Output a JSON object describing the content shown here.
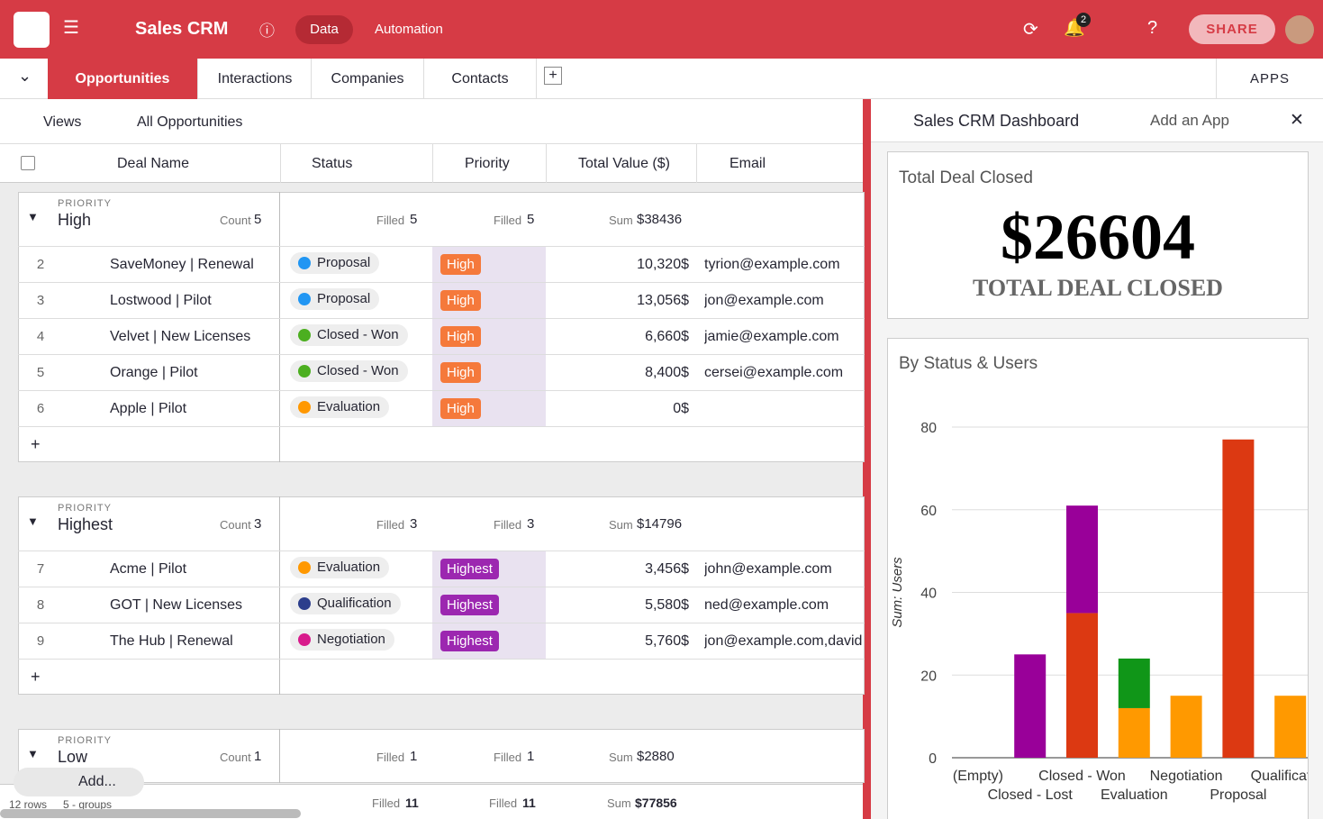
{
  "topbar": {
    "app_name": "Sales CRM",
    "tabs": [
      "Data",
      "Automation"
    ],
    "notifications": "2",
    "share": "SHARE"
  },
  "table_tabs": [
    "Opportunities",
    "Interactions",
    "Companies",
    "Contacts"
  ],
  "apps": "APPS",
  "toolbar": {
    "views": "Views",
    "view_name": "All Opportunities"
  },
  "columns": [
    "Deal Name",
    "Status",
    "Priority",
    "Total Value ($)",
    "Email"
  ],
  "summary_labels": {
    "group": "PRIORITY",
    "count": "Count",
    "filled": "Filled",
    "sum": "Sum"
  },
  "groups": [
    {
      "name": "High",
      "count": 5,
      "status_filled": 5,
      "priority_filled": 5,
      "sum": "$38436",
      "rows": [
        {
          "id": 2,
          "deal": "SaveMoney | Renewal",
          "status": "Proposal",
          "status_color": "#2196f3",
          "priority": "High",
          "priority_color": "#f5793b",
          "value": "10,320$",
          "email": "tyrion@example.com"
        },
        {
          "id": 3,
          "deal": "Lostwood | Pilot",
          "status": "Proposal",
          "status_color": "#2196f3",
          "priority": "High",
          "priority_color": "#f5793b",
          "value": "13,056$",
          "email": "jon@example.com"
        },
        {
          "id": 4,
          "deal": "Velvet | New Licenses",
          "status": "Closed - Won",
          "status_color": "#4caf20",
          "priority": "High",
          "priority_color": "#f5793b",
          "value": "6,660$",
          "email": "jamie@example.com"
        },
        {
          "id": 5,
          "deal": "Orange | Pilot",
          "status": "Closed - Won",
          "status_color": "#4caf20",
          "priority": "High",
          "priority_color": "#f5793b",
          "value": "8,400$",
          "email": "cersei@example.com"
        },
        {
          "id": 6,
          "deal": "Apple | Pilot",
          "status": "Evaluation",
          "status_color": "#ff9800",
          "priority": "High",
          "priority_color": "#f5793b",
          "value": "0$"
        }
      ]
    },
    {
      "name": "Highest",
      "count": 3,
      "status_filled": 3,
      "priority_filled": 3,
      "sum": "$14796",
      "rows": [
        {
          "id": 7,
          "deal": "Acme | Pilot",
          "status": "Evaluation",
          "status_color": "#ff9800",
          "priority": "Highest",
          "priority_color": "#9c27b0",
          "value": "3,456$",
          "email": "john@example.com"
        },
        {
          "id": 8,
          "deal": "GOT | New Licenses",
          "status": "Qualification",
          "status_color": "#2c3e8c",
          "priority": "Highest",
          "priority_color": "#9c27b0",
          "value": "5,580$",
          "email": "ned@example.com"
        },
        {
          "id": 9,
          "deal": "The Hub | Renewal",
          "status": "Negotiation",
          "status_color": "#d81b8c",
          "priority": "Highest",
          "priority_color": "#9c27b0",
          "value": "5,760$",
          "email": "jon@example.com,david"
        }
      ]
    },
    {
      "name": "Low",
      "count": 1,
      "status_filled": 1,
      "priority_filled": 1,
      "sum": "$2880",
      "rows": []
    }
  ],
  "add_button": "Add...",
  "footer": {
    "rows": "12 rows",
    "groups": "5 - groups",
    "status_filled": 11,
    "priority_filled": 11,
    "sum": "$77856"
  },
  "dashboard": {
    "title": "Sales CRM Dashboard",
    "add_app": "Add an App",
    "widget": {
      "title": "Total Deal Closed",
      "value": "$26604",
      "label": "TOTAL DEAL CLOSED"
    },
    "chart_title": "By Status & Users",
    "chart_data": {
      "type": "bar",
      "stacked": true,
      "y_label": "Sum: Users",
      "categories": [
        "(Empty)",
        "Closed - Lost",
        "Closed - Won",
        "Evaluation",
        "Negotiation",
        "Proposal",
        "Qualification"
      ],
      "series": [
        {
          "color": "#dc3912",
          "values": [
            0,
            0,
            35,
            0,
            0,
            77,
            0
          ]
        },
        {
          "color": "#ff9900",
          "values": [
            0,
            0,
            0,
            12,
            15,
            0,
            15
          ]
        },
        {
          "color": "#109618",
          "values": [
            0,
            0,
            0,
            12,
            0,
            0,
            0
          ]
        },
        {
          "color": "#990099",
          "values": [
            0,
            25,
            26,
            0,
            0,
            0,
            0
          ]
        }
      ],
      "ylim": [
        0,
        80
      ],
      "yticks": [
        0,
        20,
        40,
        60,
        80
      ],
      "grid": true
    }
  }
}
